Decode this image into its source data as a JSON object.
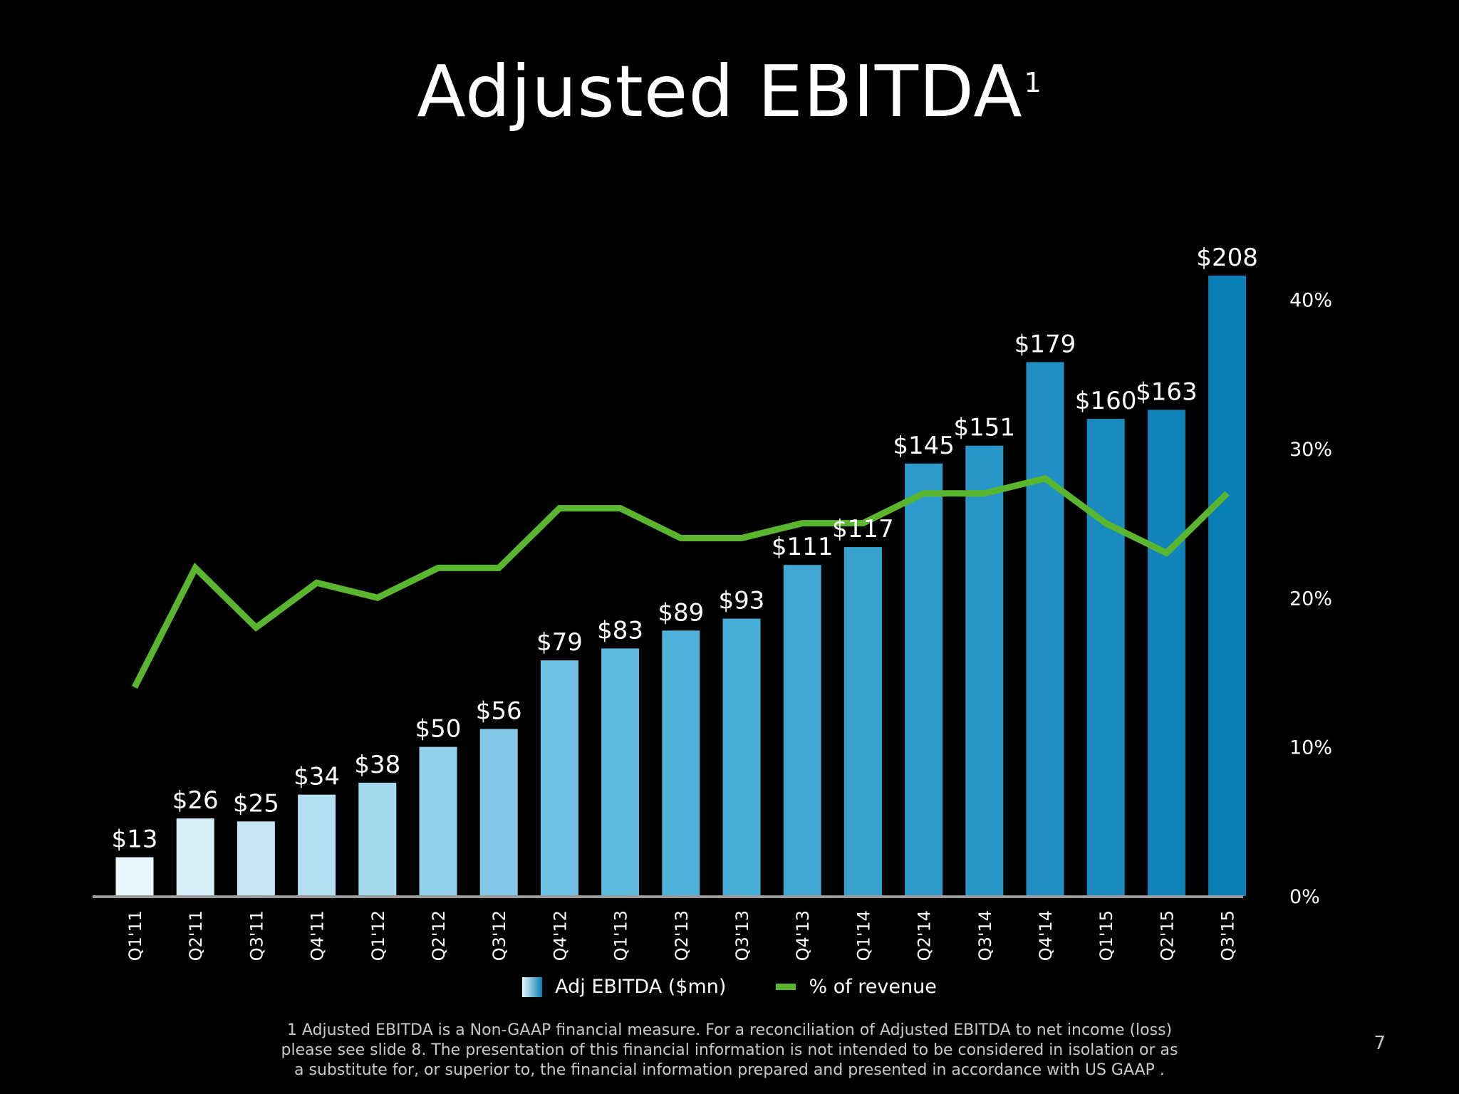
{
  "title": "Adjusted EBITDA",
  "title_superscript": "1",
  "chart_data": {
    "type": "bar",
    "categories": [
      "Q1'11",
      "Q2'11",
      "Q3'11",
      "Q4'11",
      "Q1'12",
      "Q2'12",
      "Q3'12",
      "Q4'12",
      "Q1'13",
      "Q2'13",
      "Q3'13",
      "Q4'13",
      "Q1'14",
      "Q2'14",
      "Q3'14",
      "Q4'14",
      "Q1'15",
      "Q2'15",
      "Q3'15"
    ],
    "series": [
      {
        "name": "Adj EBITDA ($mn)",
        "type": "bar",
        "values": [
          13,
          26,
          25,
          34,
          38,
          50,
          56,
          79,
          83,
          89,
          93,
          111,
          117,
          145,
          151,
          179,
          160,
          163,
          208
        ],
        "labels": [
          "$13",
          "$26",
          "$25",
          "$34",
          "$38",
          "$50",
          "$56",
          "$79",
          "$83",
          "$89",
          "$93",
          "$111",
          "$117",
          "$145",
          "$151",
          "$179",
          "$160",
          "$163",
          "$208"
        ]
      },
      {
        "name": "% of revenue",
        "type": "line",
        "axis": "right",
        "values": [
          14,
          22,
          18,
          21,
          20,
          22,
          22,
          26,
          26,
          24,
          24,
          25,
          25,
          27,
          27,
          28,
          25,
          23,
          27
        ]
      }
    ],
    "y2_ticks": [
      "0%",
      "10%",
      "20%",
      "30%",
      "40%"
    ],
    "y2_tick_values": [
      0,
      10,
      20,
      30,
      40
    ],
    "ylim": [
      0,
      208
    ],
    "y2lim": [
      0,
      41.6
    ],
    "grid": false,
    "legend_position": "bottom-center",
    "colors": {
      "bar_light": "#e8f6fd",
      "bar_mid": "#4db2dc",
      "bar_dark": "#0a7fb5",
      "line": "#5bb62f",
      "axis": "#9a9a9a",
      "text": "#ffffff"
    }
  },
  "legend": {
    "bar_label": "Adj EBITDA ($mn)",
    "line_label": "% of revenue"
  },
  "footnote": {
    "line1": "1 Adjusted EBITDA is a Non-GAAP financial measure. For a reconciliation of Adjusted EBITDA to net income (loss)",
    "line2": "please see slide 8. The presentation of this financial information is not intended to be considered in isolation or as",
    "line3": "a substitute for, or superior to, the financial information prepared and presented in accordance with US GAAP ."
  },
  "page_number": "7"
}
